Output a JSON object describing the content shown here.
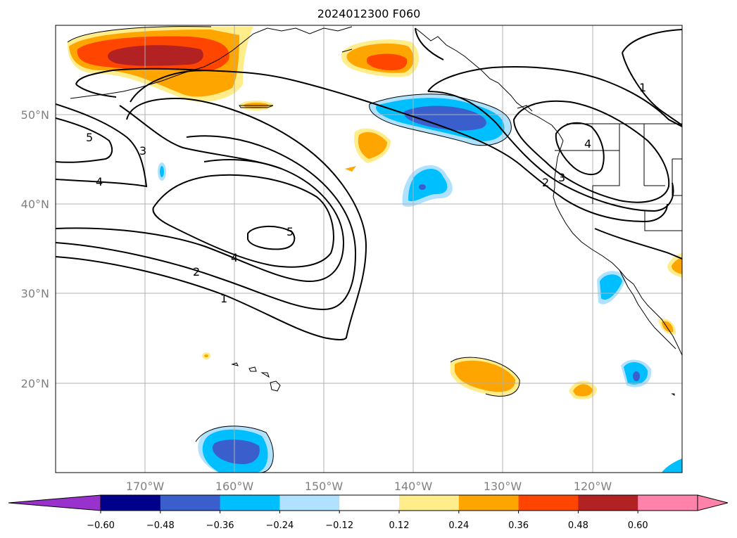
{
  "title": "2024012300 F060",
  "map": {
    "lon_range": [
      -180,
      -110
    ],
    "lat_range": [
      10,
      60
    ],
    "lat_labels": [
      "50°N",
      "40°N",
      "30°N",
      "20°N"
    ],
    "lon_labels": [
      "170°W",
      "160°W",
      "150°W",
      "140°W",
      "130°W",
      "120°W"
    ],
    "contour_labels": [
      "5",
      "3",
      "4",
      "5",
      "4",
      "2",
      "1",
      "1",
      "4",
      "3",
      "2"
    ]
  },
  "colorbar": {
    "tick_labels": [
      "−0.60",
      "−0.48",
      "−0.36",
      "−0.24",
      "−0.12",
      "0.12",
      "0.24",
      "0.36",
      "0.48",
      "0.60"
    ],
    "colors": [
      "#9932cc",
      "#00008b",
      "#3a5fcd",
      "#00bfff",
      "#b0e2ff",
      "#ffffff",
      "#ffec8b",
      "#ffa500",
      "#ff4500",
      "#b22222",
      "#ff82ab",
      "#ff82ab"
    ]
  },
  "fill_colors": {
    "pos1": "#ffec8b",
    "pos2": "#ffa500",
    "pos3": "#ff4500",
    "pos4": "#b22222",
    "neg1": "#b0e2ff",
    "neg2": "#00bfff",
    "neg3": "#3a5fcd"
  }
}
